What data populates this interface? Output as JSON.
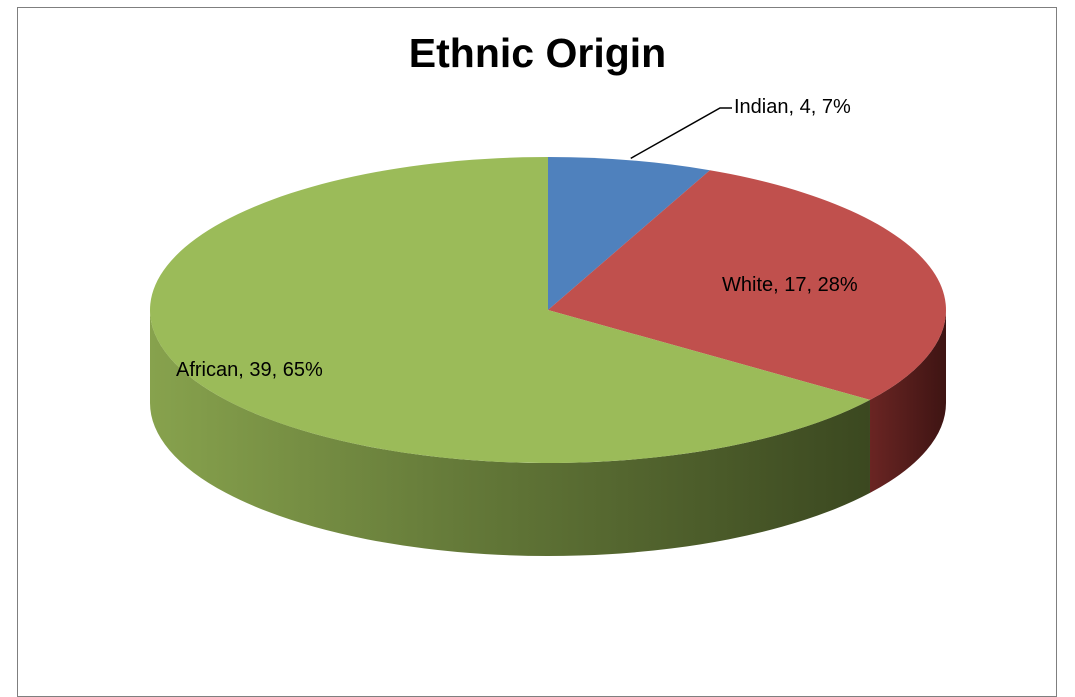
{
  "chart_data": {
    "type": "pie",
    "title": "Ethnic Origin",
    "categories": [
      "Indian",
      "White",
      "African"
    ],
    "values": [
      4,
      17,
      39
    ],
    "percentages": [
      7,
      28,
      65
    ],
    "labels": [
      "Indian, 4, 7%",
      "White, 17, 28%",
      "African, 39, 65%"
    ],
    "colors": [
      "#4f81bd",
      "#c0504d",
      "#9bbb59"
    ],
    "side_colors": [
      "#3a5f8c",
      "#5a1f1e",
      "#5d7233"
    ],
    "style": "3d",
    "legend": "none"
  }
}
